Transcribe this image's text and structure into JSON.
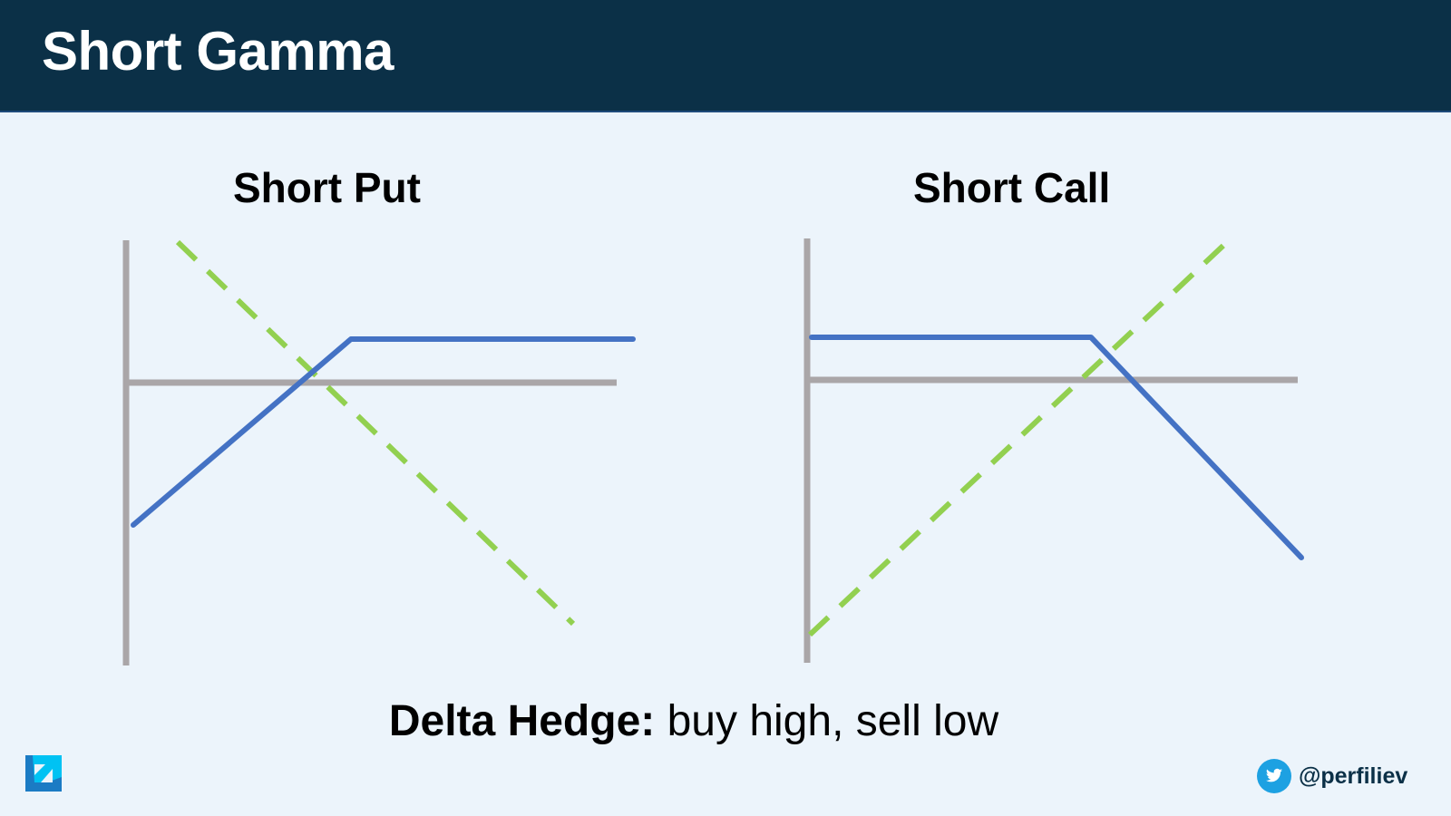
{
  "header": {
    "title": "Short Gamma"
  },
  "panels": [
    {
      "title": "Short Put"
    },
    {
      "title": "Short Call"
    }
  ],
  "caption": {
    "bold": "Delta Hedge:",
    "rest": " buy high, sell low"
  },
  "footer": {
    "handle": "@perfiliev",
    "handle_icon": "twitter-icon",
    "logo_icon": "brand-logo"
  },
  "colors": {
    "header": "#0b3047",
    "background": "#ecf4fb",
    "axis": "#aaa6a8",
    "payoff": "#4472c4",
    "delta": "#92d050",
    "twitter": "#1da1e2"
  }
}
